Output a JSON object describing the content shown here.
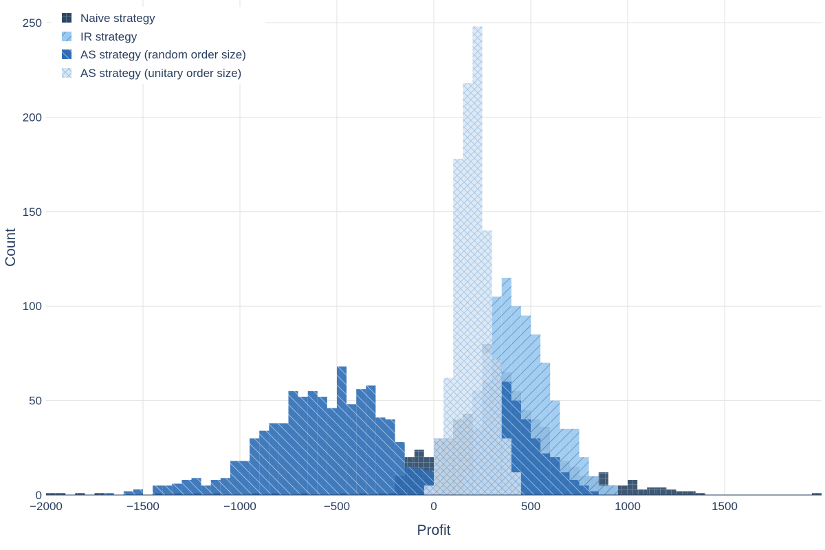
{
  "chart_data": {
    "type": "histogram",
    "xlabel": "Profit",
    "ylabel": "Count",
    "xlim": [
      -2000,
      2000
    ],
    "ylim": [
      0,
      262
    ],
    "x_ticks": [
      -2000,
      -1500,
      -1000,
      -500,
      0,
      500,
      1000,
      1500
    ],
    "x_tick_labels": [
      "−2000",
      "−1500",
      "−1000",
      "−500",
      "0",
      "500",
      "1000",
      "1500"
    ],
    "y_ticks": [
      0,
      50,
      100,
      150,
      200,
      250
    ],
    "y_tick_labels": [
      "0",
      "50",
      "100",
      "150",
      "200",
      "250"
    ],
    "grid": true,
    "legend_position": "top-left",
    "series": [
      {
        "name": "Naive strategy",
        "color": "#2a4766",
        "pattern": "grid",
        "bins": [
          [
            -2000,
            -1950,
            1
          ],
          [
            -1950,
            -1900,
            1
          ],
          [
            -1850,
            -1800,
            1
          ],
          [
            -1750,
            -1700,
            1
          ],
          [
            -1450,
            -1400,
            1
          ],
          [
            -1350,
            -1300,
            1
          ],
          [
            -1250,
            -1200,
            1
          ],
          [
            -1150,
            -1100,
            1
          ],
          [
            -950,
            -900,
            1
          ],
          [
            -850,
            -800,
            1
          ],
          [
            -700,
            -650,
            1
          ],
          [
            -500,
            -450,
            1
          ],
          [
            -400,
            -350,
            1
          ],
          [
            -300,
            -250,
            1
          ],
          [
            -250,
            -200,
            1
          ],
          [
            -200,
            -150,
            10
          ],
          [
            -150,
            -100,
            20
          ],
          [
            -100,
            -50,
            24
          ],
          [
            -50,
            0,
            20
          ],
          [
            0,
            50,
            30
          ],
          [
            50,
            100,
            30
          ],
          [
            100,
            150,
            40
          ],
          [
            150,
            200,
            43
          ],
          [
            200,
            250,
            55
          ],
          [
            250,
            300,
            80
          ],
          [
            300,
            350,
            70
          ],
          [
            350,
            400,
            65
          ],
          [
            400,
            450,
            55
          ],
          [
            450,
            500,
            45
          ],
          [
            500,
            550,
            40
          ],
          [
            550,
            600,
            36
          ],
          [
            600,
            650,
            20
          ],
          [
            650,
            700,
            18
          ],
          [
            700,
            750,
            15
          ],
          [
            750,
            800,
            10
          ],
          [
            800,
            850,
            10
          ],
          [
            850,
            900,
            12
          ],
          [
            900,
            950,
            5
          ],
          [
            950,
            1000,
            5
          ],
          [
            1000,
            1050,
            8
          ],
          [
            1050,
            1100,
            3
          ],
          [
            1100,
            1150,
            4
          ],
          [
            1150,
            1200,
            4
          ],
          [
            1200,
            1250,
            3
          ],
          [
            1250,
            1300,
            2
          ],
          [
            1300,
            1350,
            2
          ],
          [
            1350,
            1400,
            1
          ],
          [
            1950,
            2000,
            1
          ]
        ]
      },
      {
        "name": "IR strategy",
        "color": "#9bc9f0",
        "pattern": "diagonal",
        "bins": [
          [
            200,
            250,
            55
          ],
          [
            250,
            300,
            75
          ],
          [
            300,
            350,
            105
          ],
          [
            350,
            400,
            115
          ],
          [
            400,
            450,
            100
          ],
          [
            450,
            500,
            95
          ],
          [
            500,
            550,
            85
          ],
          [
            550,
            600,
            70
          ],
          [
            600,
            650,
            50
          ],
          [
            650,
            700,
            35
          ],
          [
            700,
            750,
            35
          ],
          [
            750,
            800,
            20
          ],
          [
            800,
            850,
            10
          ],
          [
            850,
            900,
            5
          ],
          [
            900,
            950,
            5
          ]
        ]
      },
      {
        "name": "AS strategy (random order size)",
        "color": "#2e6db4",
        "pattern": "diagonal",
        "bins": [
          [
            -1900,
            -1850,
            0
          ],
          [
            -1700,
            -1650,
            1
          ],
          [
            -1600,
            -1550,
            2
          ],
          [
            -1550,
            -1500,
            3
          ],
          [
            -1450,
            -1400,
            5
          ],
          [
            -1400,
            -1350,
            5
          ],
          [
            -1350,
            -1300,
            6
          ],
          [
            -1300,
            -1250,
            8
          ],
          [
            -1250,
            -1200,
            9
          ],
          [
            -1200,
            -1150,
            5
          ],
          [
            -1150,
            -1100,
            8
          ],
          [
            -1100,
            -1050,
            9
          ],
          [
            -1050,
            -1000,
            18
          ],
          [
            -1000,
            -950,
            18
          ],
          [
            -950,
            -900,
            30
          ],
          [
            -900,
            -850,
            34
          ],
          [
            -850,
            -800,
            38
          ],
          [
            -800,
            -750,
            38
          ],
          [
            -750,
            -700,
            55
          ],
          [
            -700,
            -650,
            52
          ],
          [
            -650,
            -600,
            55
          ],
          [
            -600,
            -550,
            52
          ],
          [
            -550,
            -500,
            46
          ],
          [
            -500,
            -450,
            68
          ],
          [
            -450,
            -400,
            48
          ],
          [
            -400,
            -350,
            56
          ],
          [
            -350,
            -300,
            58
          ],
          [
            -300,
            -250,
            41
          ],
          [
            -250,
            -200,
            40
          ],
          [
            -200,
            -150,
            28
          ],
          [
            -150,
            -100,
            15
          ],
          [
            -100,
            -50,
            14
          ],
          [
            -50,
            0,
            13
          ],
          [
            150,
            200,
            12
          ],
          [
            200,
            250,
            35
          ],
          [
            250,
            300,
            60
          ],
          [
            300,
            350,
            72
          ],
          [
            350,
            400,
            60
          ],
          [
            400,
            450,
            50
          ],
          [
            450,
            500,
            40
          ],
          [
            500,
            550,
            30
          ],
          [
            550,
            600,
            22
          ],
          [
            600,
            650,
            20
          ],
          [
            650,
            700,
            12
          ],
          [
            700,
            750,
            8
          ],
          [
            750,
            800,
            5
          ],
          [
            800,
            850,
            2
          ]
        ]
      },
      {
        "name": "AS strategy (unitary order size)",
        "color": "#d6e6f5",
        "pattern": "cross",
        "bins": [
          [
            -50,
            0,
            5
          ],
          [
            0,
            50,
            30
          ],
          [
            50,
            100,
            62
          ],
          [
            100,
            150,
            178
          ],
          [
            150,
            200,
            218
          ],
          [
            200,
            250,
            248
          ],
          [
            250,
            300,
            140
          ],
          [
            300,
            350,
            72
          ],
          [
            350,
            400,
            30
          ],
          [
            400,
            450,
            12
          ]
        ]
      }
    ]
  }
}
